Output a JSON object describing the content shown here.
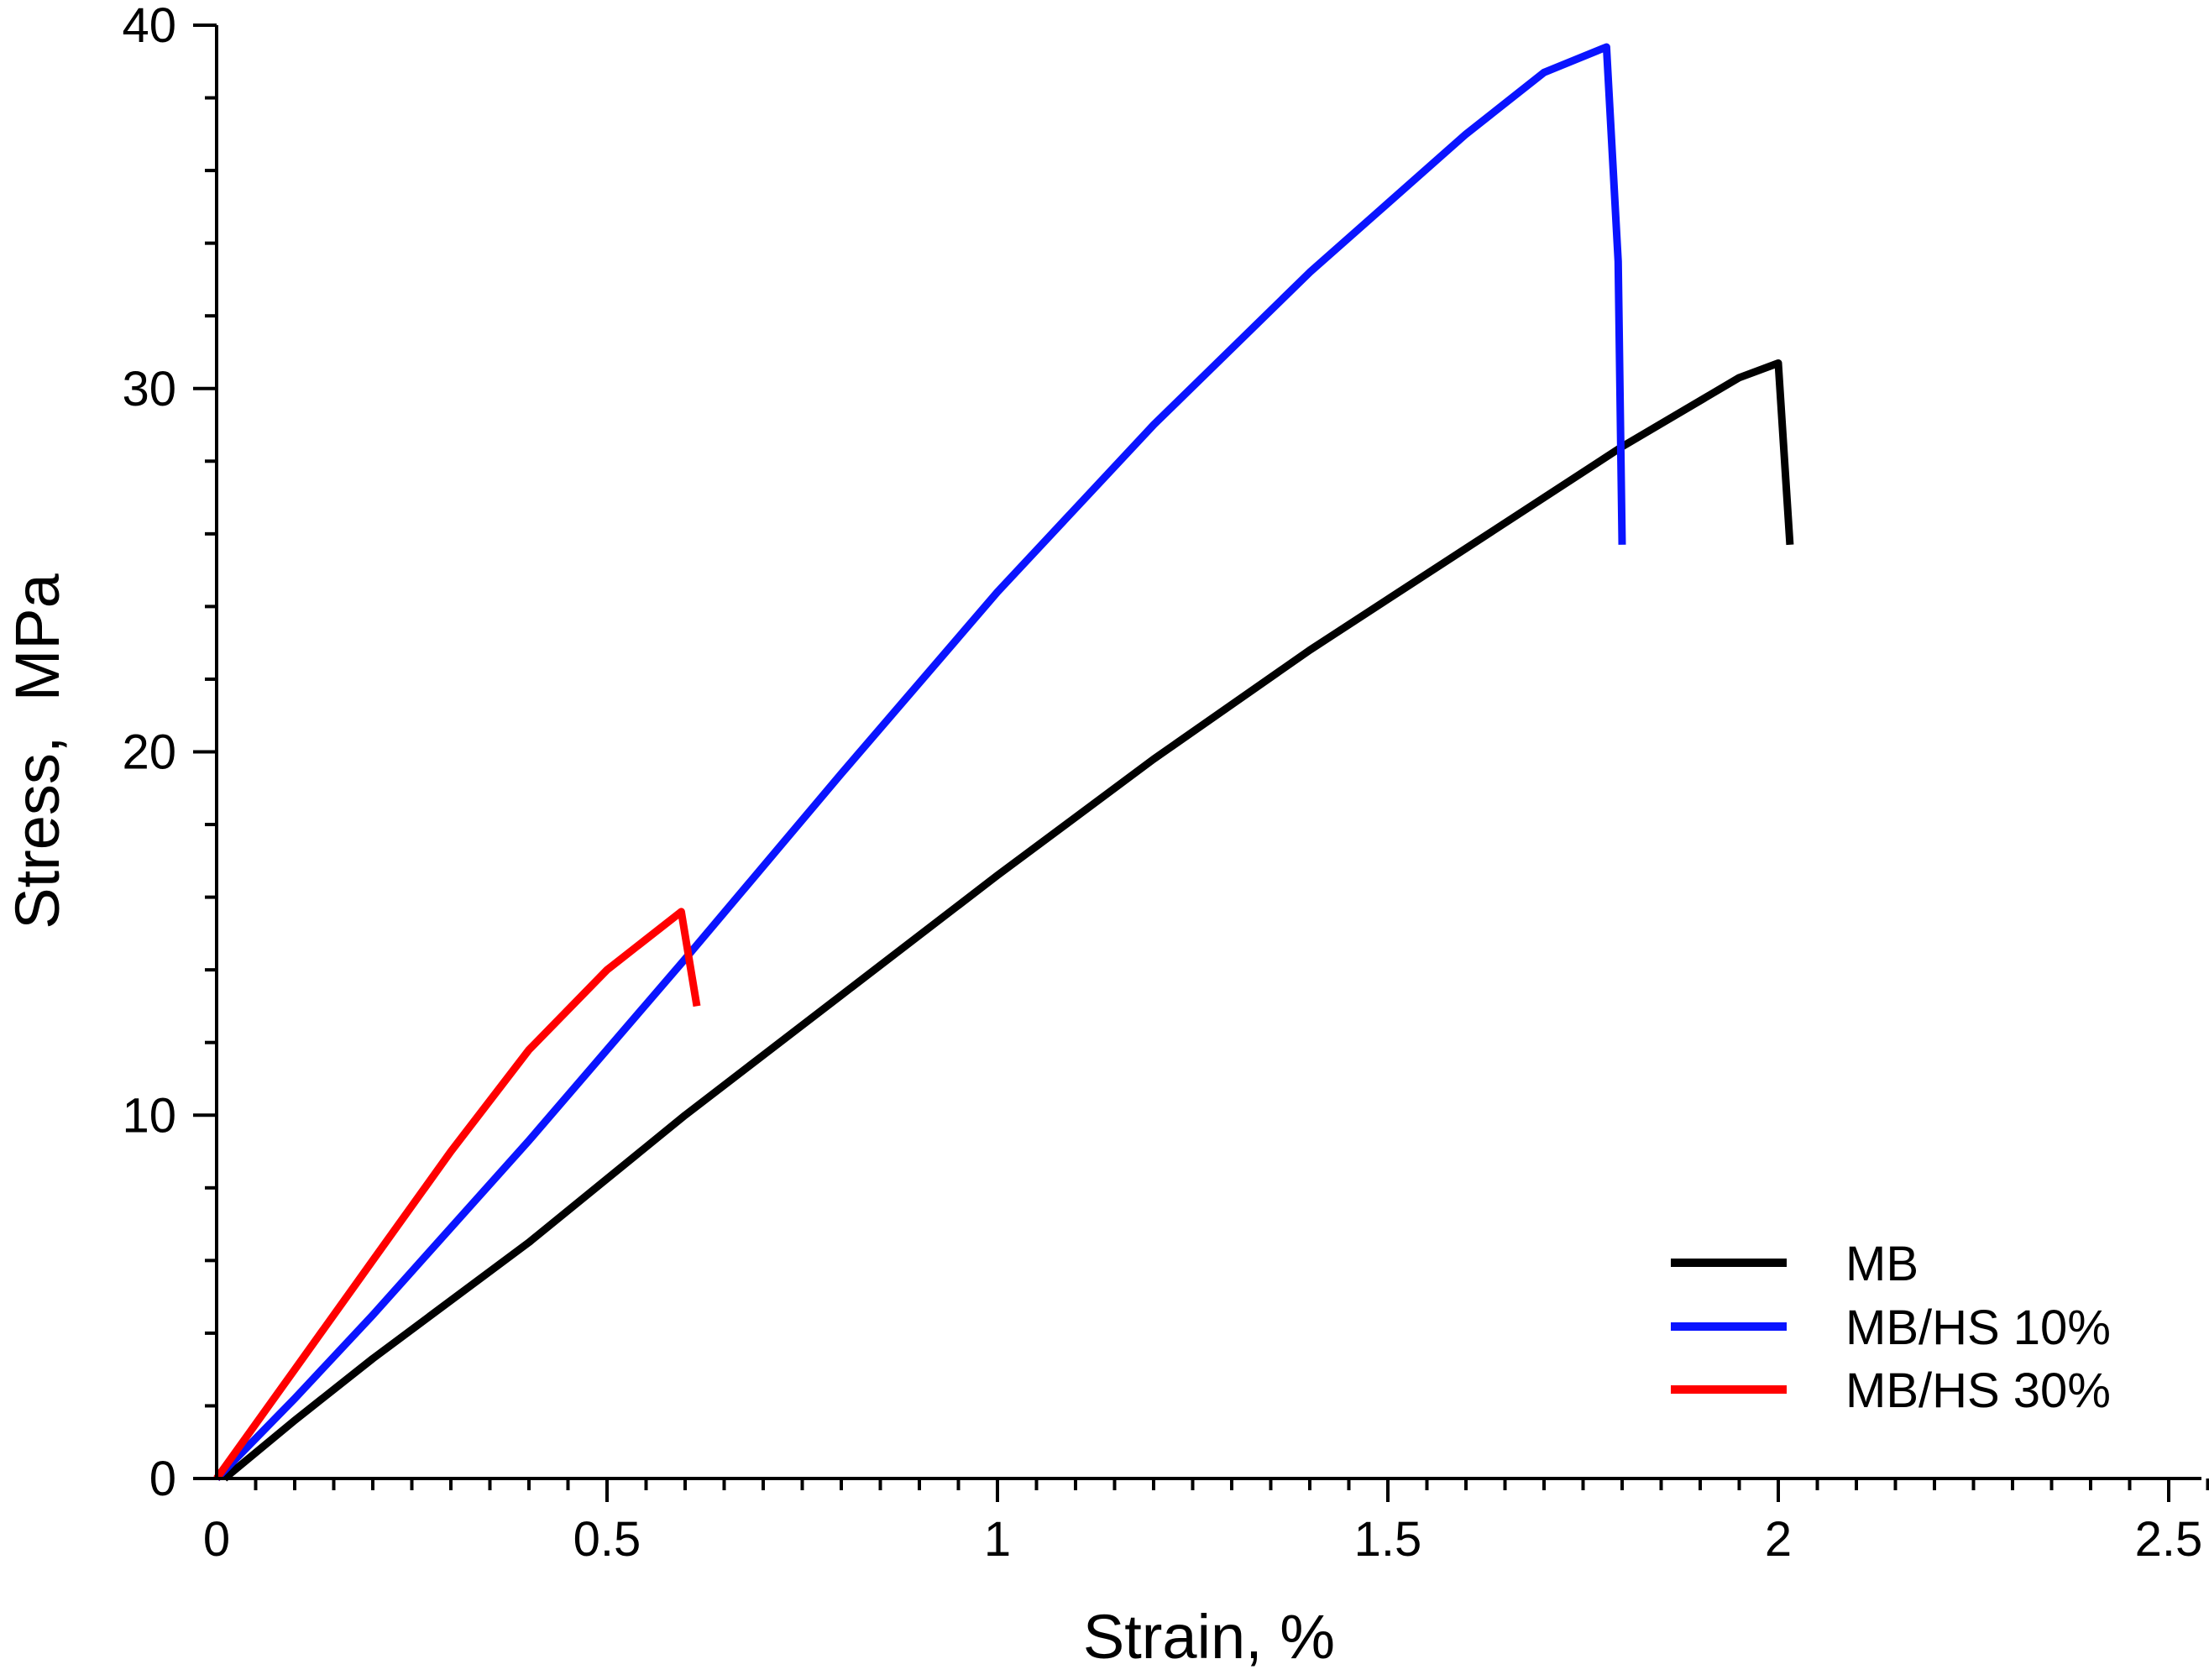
{
  "chart_data": {
    "type": "line",
    "title": "",
    "xlabel": "Strain, %",
    "ylabel": "Stress,  MPa",
    "xlim": [
      0,
      2.55
    ],
    "ylim": [
      0,
      40
    ],
    "x_ticks": [
      0,
      0.5,
      1,
      1.5,
      2,
      2.5
    ],
    "x_tick_labels": [
      "0",
      "0.5",
      "1",
      "1.5",
      "2",
      "2.5"
    ],
    "x_minor_step": 0.05,
    "y_ticks": [
      0,
      10,
      20,
      30,
      40
    ],
    "y_tick_labels": [
      "0",
      "10",
      "20",
      "30",
      "40"
    ],
    "y_minor_step": 2,
    "grid": false,
    "legend_position": "bottom-right",
    "series": [
      {
        "name": "MB",
        "color": "#000000",
        "points": [
          [
            0.01,
            0
          ],
          [
            0.1,
            1.6
          ],
          [
            0.2,
            3.3
          ],
          [
            0.4,
            6.5
          ],
          [
            0.6,
            10.0
          ],
          [
            0.8,
            13.3
          ],
          [
            1.0,
            16.6
          ],
          [
            1.2,
            19.8
          ],
          [
            1.4,
            22.8
          ],
          [
            1.6,
            25.6
          ],
          [
            1.8,
            28.4
          ],
          [
            1.95,
            30.3
          ],
          [
            2.0,
            30.7
          ],
          [
            2.015,
            25.7
          ]
        ]
      },
      {
        "name": "MB/HS 10%",
        "color": "#0a14ff",
        "points": [
          [
            0,
            0
          ],
          [
            0.1,
            2.2
          ],
          [
            0.2,
            4.5
          ],
          [
            0.4,
            9.3
          ],
          [
            0.6,
            14.3
          ],
          [
            0.8,
            19.4
          ],
          [
            1.0,
            24.4
          ],
          [
            1.2,
            29.0
          ],
          [
            1.4,
            33.2
          ],
          [
            1.6,
            37.0
          ],
          [
            1.7,
            38.7
          ],
          [
            1.78,
            39.4
          ],
          [
            1.795,
            33.5
          ],
          [
            1.8,
            25.7
          ]
        ]
      },
      {
        "name": "MB/HS 30%",
        "color": "#ff0000",
        "points": [
          [
            0,
            0
          ],
          [
            0.1,
            3.0
          ],
          [
            0.2,
            6.0
          ],
          [
            0.3,
            9.0
          ],
          [
            0.4,
            11.8
          ],
          [
            0.5,
            14.0
          ],
          [
            0.595,
            15.6
          ],
          [
            0.615,
            13.0
          ]
        ]
      }
    ]
  }
}
